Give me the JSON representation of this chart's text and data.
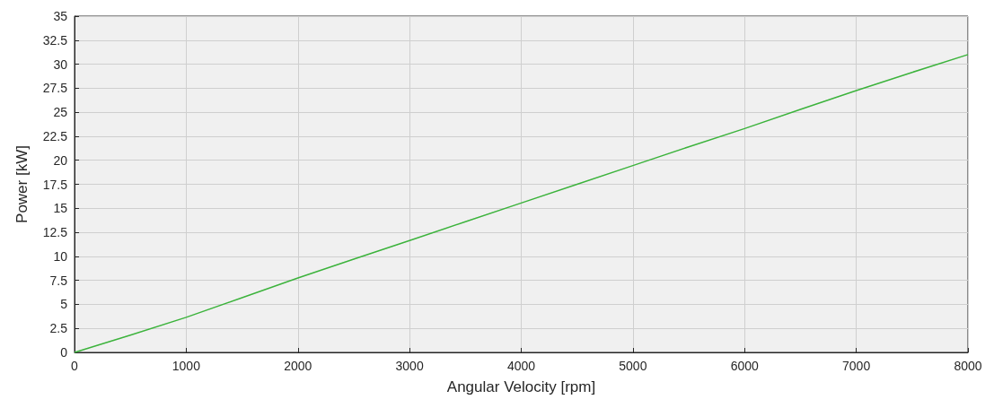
{
  "chart_data": {
    "type": "line",
    "xlabel": "Angular Velocity [rpm]",
    "ylabel": "Power [kW]",
    "x": [
      0,
      500,
      1000,
      1500,
      2000,
      2500,
      3000,
      3500,
      4000,
      4500,
      5000,
      5500,
      6000,
      6500,
      7000,
      7500,
      8000
    ],
    "series": [
      {
        "color": "#3cb33c",
        "values": [
          0,
          1.8,
          3.65,
          5.7,
          7.75,
          9.7,
          11.65,
          13.6,
          15.55,
          17.5,
          19.45,
          21.4,
          23.3,
          25.3,
          27.25,
          29.15,
          31.0
        ]
      }
    ],
    "xlim": [
      0,
      8000
    ],
    "xticks": [
      0,
      1000,
      2000,
      3000,
      4000,
      5000,
      6000,
      7000,
      8000
    ],
    "ylim": [
      0,
      35
    ],
    "yticks": [
      0,
      2.5,
      5,
      7.5,
      10,
      12.5,
      15,
      17.5,
      20,
      22.5,
      25,
      27.5,
      30,
      32.5,
      35
    ],
    "grid": true,
    "marker": "none",
    "line_style": "solid"
  }
}
